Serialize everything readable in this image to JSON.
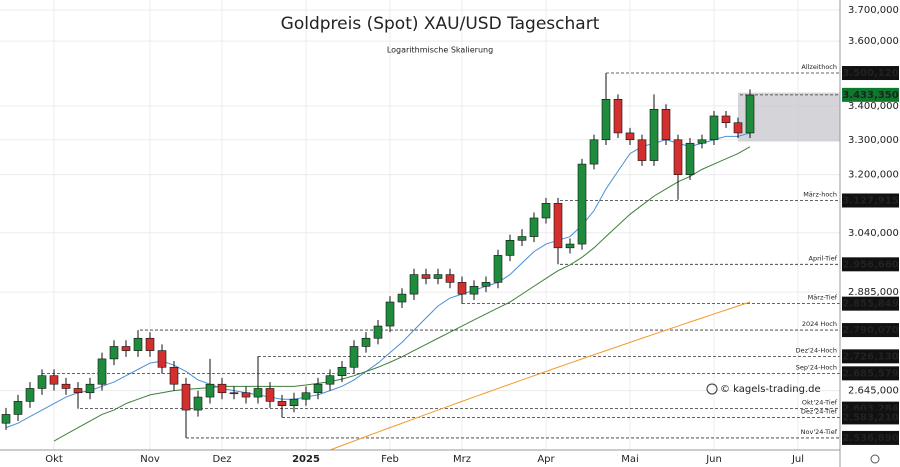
{
  "chart_data": {
    "type": "candlestick",
    "title": "Goldpreis (Spot) XAU/USD Tageschart",
    "subtitle": "Logarithmische Skalierung",
    "watermark": "© kagels-trading.de",
    "log_scale": true,
    "grid": true,
    "categories": [
      null,
      null,
      null,
      null,
      "Okt",
      null,
      null,
      null,
      null,
      null,
      null,
      null,
      "Nov",
      null,
      null,
      null,
      null,
      null,
      "Dez",
      null,
      null,
      null,
      null,
      null,
      null,
      "2025",
      null,
      null,
      null,
      null,
      null,
      null,
      "Feb",
      null,
      null,
      null,
      null,
      null,
      "Mrz",
      null,
      null,
      null,
      null,
      null,
      null,
      "Apr",
      null,
      null,
      null,
      null,
      null,
      null,
      "Mai",
      null,
      null,
      null,
      null,
      null,
      null,
      "Jun",
      null,
      null,
      null,
      null,
      null,
      null,
      "Jul",
      null,
      null,
      null
    ],
    "ylim": [
      2510,
      3733
    ],
    "yticks": [
      {
        "value": 3700,
        "label": "3.700,000"
      },
      {
        "value": 3600,
        "label": "3.600,000"
      },
      {
        "value": 3400,
        "label": "3.400,000"
      },
      {
        "value": 3300,
        "label": "3.300,000"
      },
      {
        "value": 3200,
        "label": "3.200,000"
      },
      {
        "value": 3040,
        "label": "3.040,000"
      },
      {
        "value": 2885,
        "label": "2.885,000"
      },
      {
        "value": 2645,
        "label": "2.645,000"
      }
    ],
    "up_color": "#1e8c3c",
    "down_color": "#d32f2f",
    "ohlc": {
      "open": [
        2570,
        2590,
        2620,
        2650,
        2680,
        2660,
        2650,
        2640,
        2660,
        2720,
        2750,
        2740,
        2770,
        2740,
        2700,
        2660,
        2600,
        2630,
        2660,
        2640,
        2640,
        2630,
        2650,
        2620,
        2610,
        2625,
        2640,
        2660,
        2680,
        2700,
        2750,
        2770,
        2800,
        2860,
        2880,
        2930,
        2920,
        2930,
        2910,
        2880,
        2900,
        2910,
        2980,
        3020,
        3030,
        3080,
        3120,
        3000,
        3010,
        3230,
        3300,
        3420,
        3320,
        3300,
        3240,
        3390,
        3300,
        3200,
        3290,
        3300,
        3370,
        3350,
        3320
      ],
      "high": [
        2605,
        2635,
        2665,
        2695,
        2695,
        2675,
        2665,
        2675,
        2735,
        2765,
        2765,
        2790,
        2785,
        2755,
        2715,
        2675,
        2645,
        2720,
        2675,
        2655,
        2655,
        2726,
        2665,
        2635,
        2640,
        2655,
        2675,
        2695,
        2715,
        2765,
        2785,
        2815,
        2875,
        2895,
        2945,
        2945,
        2945,
        2945,
        2925,
        2915,
        2925,
        2995,
        3035,
        3050,
        3095,
        3135,
        3135,
        3025,
        3245,
        3315,
        3500,
        3435,
        3335,
        3315,
        3435,
        3405,
        3315,
        3305,
        3315,
        3385,
        3385,
        3365,
        3450
      ],
      "low": [
        2555,
        2575,
        2605,
        2635,
        2645,
        2635,
        2603,
        2625,
        2645,
        2705,
        2725,
        2725,
        2725,
        2685,
        2645,
        2537,
        2585,
        2615,
        2625,
        2625,
        2615,
        2615,
        2605,
        2583,
        2595,
        2610,
        2625,
        2645,
        2665,
        2685,
        2735,
        2755,
        2785,
        2845,
        2865,
        2905,
        2905,
        2895,
        2856,
        2865,
        2885,
        2895,
        2965,
        3005,
        3015,
        3065,
        2957,
        2985,
        2995,
        3215,
        3285,
        3305,
        3285,
        3225,
        3225,
        3285,
        3130,
        3185,
        3275,
        3285,
        3335,
        3305,
        3305
      ],
      "close": [
        2590,
        2620,
        2650,
        2680,
        2660,
        2650,
        2640,
        2660,
        2720,
        2750,
        2740,
        2770,
        2740,
        2700,
        2660,
        2600,
        2630,
        2660,
        2640,
        2640,
        2630,
        2650,
        2620,
        2610,
        2625,
        2640,
        2660,
        2680,
        2700,
        2750,
        2770,
        2800,
        2860,
        2880,
        2930,
        2920,
        2930,
        2910,
        2880,
        2900,
        2910,
        2980,
        3020,
        3030,
        3080,
        3120,
        3000,
        3010,
        3230,
        3300,
        3420,
        3320,
        3300,
        3240,
        3390,
        3300,
        3200,
        3290,
        3300,
        3370,
        3350,
        3320,
        3433
      ]
    },
    "moving_averages": [
      {
        "color": "#4a8fd8",
        "values": [
          2560,
          2570,
          2585,
          2600,
          2615,
          2630,
          2640,
          2645,
          2655,
          2665,
          2680,
          2695,
          2710,
          2715,
          2705,
          2690,
          2670,
          2660,
          2650,
          2645,
          2640,
          2635,
          2630,
          2625,
          2625,
          2630,
          2635,
          2645,
          2655,
          2670,
          2690,
          2710,
          2735,
          2760,
          2790,
          2820,
          2850,
          2870,
          2880,
          2890,
          2900,
          2910,
          2930,
          2960,
          2990,
          3010,
          3020,
          3030,
          3060,
          3100,
          3160,
          3210,
          3260,
          3280,
          3290,
          3300,
          3290,
          3280,
          3290,
          3300,
          3310,
          3310,
          3320
        ]
      },
      {
        "color": "#3f7f3a",
        "values": [
          null,
          null,
          null,
          null,
          2530,
          2545,
          2560,
          2575,
          2590,
          2600,
          2615,
          2625,
          2635,
          2640,
          2645,
          2648,
          2650,
          2652,
          2655,
          2655,
          2655,
          2655,
          2655,
          2655,
          2655,
          2658,
          2662,
          2666,
          2672,
          2680,
          2690,
          2700,
          2712,
          2725,
          2740,
          2755,
          2770,
          2785,
          2800,
          2815,
          2830,
          2845,
          2860,
          2880,
          2900,
          2920,
          2940,
          2955,
          2975,
          3000,
          3030,
          3060,
          3090,
          3115,
          3140,
          3160,
          3180,
          3195,
          3215,
          3230,
          3245,
          3260,
          3280
        ]
      },
      {
        "color": "#f39a2b",
        "values": [
          null,
          null,
          null,
          null,
          null,
          null,
          null,
          null,
          null,
          null,
          null,
          null,
          null,
          null,
          null,
          null,
          null,
          null,
          null,
          null,
          null,
          null,
          null,
          null,
          null,
          null,
          null,
          2510,
          2520,
          2530,
          2540,
          2550,
          2560,
          2570,
          2580,
          2590,
          2600,
          2610,
          2620,
          2630,
          2640,
          2650,
          2660,
          2670,
          2680,
          2690,
          2700,
          2710,
          2720,
          2730,
          2740,
          2750,
          2760,
          2770,
          2780,
          2790,
          2800,
          2810,
          2820,
          2830,
          2840,
          2850,
          2860
        ]
      }
    ],
    "highlight_range": [
      3295,
      3440
    ],
    "levels": [
      {
        "value": 3500.12,
        "label": "3.500,120",
        "name": "Allzeithoch"
      },
      {
        "value": 3433.35,
        "label": "3.433,350",
        "color": "#0c7a2c"
      },
      {
        "value": 3127.915,
        "label": "3.127,915",
        "name": "März-hoch"
      },
      {
        "value": 2956.66,
        "label": "2.956,660",
        "name": "April-Tief"
      },
      {
        "value": 2855.849,
        "label": "2.855,849",
        "name": "März-Tief"
      },
      {
        "value": 2790.07,
        "label": "2.790,070",
        "name": "2024 Hoch"
      },
      {
        "value": 2726.13,
        "label": "2.726,130",
        "name": "Dez'24-Hoch"
      },
      {
        "value": 2685.579,
        "label": "2.685,579",
        "name": "Sep'24-Hoch"
      },
      {
        "value": 2603.284,
        "label": "2.603,284",
        "name": "Okt'24-Tief"
      },
      {
        "value": 2583.21,
        "label": "2.583,210",
        "name": "Dez'24-Tief"
      },
      {
        "value": 2536.89,
        "label": "2.536,890",
        "name": "Nov'24-Tief"
      }
    ]
  }
}
